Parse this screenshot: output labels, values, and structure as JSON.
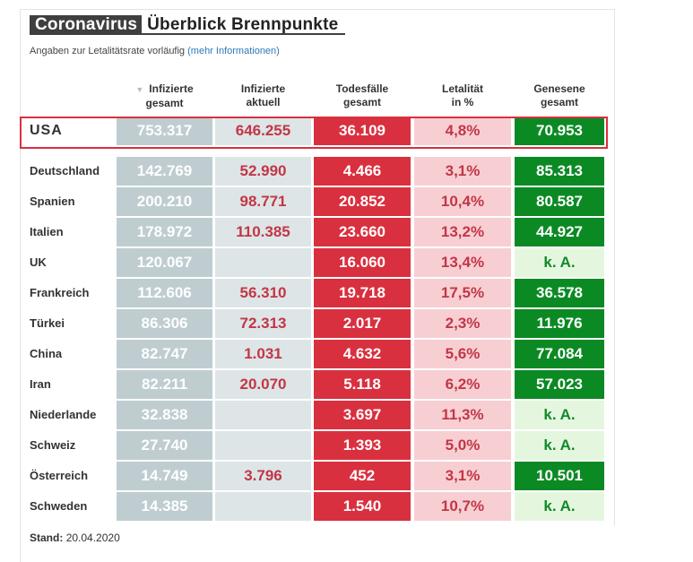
{
  "title": {
    "dark": "Coronavirus",
    "light": "Überblick Brennpunkte"
  },
  "subtitle": {
    "text": "Angaben zur Letalitätsrate vorläufig",
    "link": "(mehr Informationen)"
  },
  "headers": {
    "sort_icon": "▼",
    "c1_a": "Infizierte",
    "c1_b": "gesamt",
    "c2_a": "Infizierte",
    "c2_b": "aktuell",
    "c3_a": "Todesfälle",
    "c3_b": "gesamt",
    "c4_a": "Letalität",
    "c4_b": "in %",
    "c5_a": "Genesene",
    "c5_b": "gesamt"
  },
  "usa": {
    "country": "USA",
    "infizierte_gesamt": "753.317",
    "infizierte_aktuell": "646.255",
    "todesfaelle": "36.109",
    "letalitaet": "4,8%",
    "genesene": "70.953"
  },
  "rows": [
    {
      "country": "Deutschland",
      "infizierte_gesamt": "142.769",
      "infizierte_aktuell": "52.990",
      "todesfaelle": "4.466",
      "letalitaet": "3,1%",
      "genesene": "85.313"
    },
    {
      "country": "Spanien",
      "infizierte_gesamt": "200.210",
      "infizierte_aktuell": "98.771",
      "todesfaelle": "20.852",
      "letalitaet": "10,4%",
      "genesene": "80.587"
    },
    {
      "country": "Italien",
      "infizierte_gesamt": "178.972",
      "infizierte_aktuell": "110.385",
      "todesfaelle": "23.660",
      "letalitaet": "13,2%",
      "genesene": "44.927"
    },
    {
      "country": "UK",
      "infizierte_gesamt": "120.067",
      "infizierte_aktuell": "",
      "todesfaelle": "16.060",
      "letalitaet": "13,4%",
      "genesene": "k. A."
    },
    {
      "country": "Frankreich",
      "infizierte_gesamt": "112.606",
      "infizierte_aktuell": "56.310",
      "todesfaelle": "19.718",
      "letalitaet": "17,5%",
      "genesene": "36.578"
    },
    {
      "country": "Türkei",
      "infizierte_gesamt": "86.306",
      "infizierte_aktuell": "72.313",
      "todesfaelle": "2.017",
      "letalitaet": "2,3%",
      "genesene": "11.976"
    },
    {
      "country": "China",
      "infizierte_gesamt": "82.747",
      "infizierte_aktuell": "1.031",
      "todesfaelle": "4.632",
      "letalitaet": "5,6%",
      "genesene": "77.084"
    },
    {
      "country": "Iran",
      "infizierte_gesamt": "82.211",
      "infizierte_aktuell": "20.070",
      "todesfaelle": "5.118",
      "letalitaet": "6,2%",
      "genesene": "57.023"
    },
    {
      "country": "Niederlande",
      "infizierte_gesamt": "32.838",
      "infizierte_aktuell": "",
      "todesfaelle": "3.697",
      "letalitaet": "11,3%",
      "genesene": "k. A."
    },
    {
      "country": "Schweiz",
      "infizierte_gesamt": "27.740",
      "infizierte_aktuell": "",
      "todesfaelle": "1.393",
      "letalitaet": "5,0%",
      "genesene": "k. A."
    },
    {
      "country": "Österreich",
      "infizierte_gesamt": "14.749",
      "infizierte_aktuell": "3.796",
      "todesfaelle": "452",
      "letalitaet": "3,1%",
      "genesene": "10.501"
    },
    {
      "country": "Schweden",
      "infizierte_gesamt": "14.385",
      "infizierte_aktuell": "",
      "todesfaelle": "1.540",
      "letalitaet": "10,7%",
      "genesene": "k. A."
    }
  ],
  "stand": {
    "label": "Stand:",
    "date": "20.04.2020"
  },
  "colors": {
    "infizierte_gesamt": "#bfcdd1",
    "infizierte_aktuell": "#dde5e7",
    "todesfaelle": "#d9303f",
    "letalitaet": "#f7cfd3",
    "genesene": "#0b8a24",
    "keine_angabe": "#e5f6df",
    "highlight_border": "#d8303e"
  }
}
